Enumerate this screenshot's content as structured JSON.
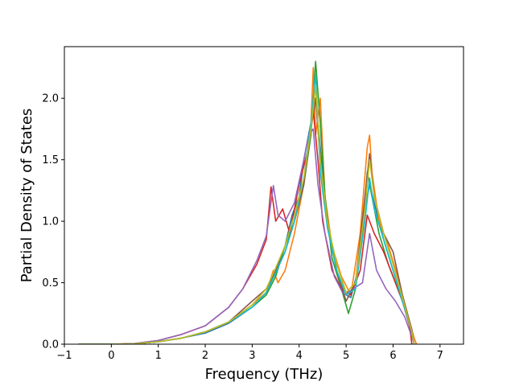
{
  "chart_data": {
    "type": "line",
    "title": "",
    "xlabel": "Frequency (THz)",
    "ylabel": "Partial Density of States",
    "xlim": [
      -1.0,
      7.5
    ],
    "ylim": [
      0.0,
      2.42
    ],
    "xticks": [
      -1,
      0,
      1,
      2,
      3,
      4,
      5,
      6,
      7
    ],
    "xtick_labels": [
      "−1",
      "0",
      "1",
      "2",
      "3",
      "4",
      "5",
      "6",
      "7"
    ],
    "yticks": [
      0.0,
      0.5,
      1.0,
      1.5,
      2.0
    ],
    "ytick_labels": [
      "0.0",
      "0.5",
      "1.0",
      "1.5",
      "2.0"
    ],
    "grid": false,
    "legend": "none",
    "series": [
      {
        "color": "#1f77b4",
        "points": [
          [
            -0.7,
            0
          ],
          [
            0,
            0
          ],
          [
            0.5,
            0.003
          ],
          [
            1.0,
            0.02
          ],
          [
            1.5,
            0.05
          ],
          [
            2.0,
            0.09
          ],
          [
            2.5,
            0.17
          ],
          [
            3.0,
            0.3
          ],
          [
            3.3,
            0.42
          ],
          [
            3.5,
            0.6
          ],
          [
            3.7,
            0.8
          ],
          [
            3.85,
            1.05
          ],
          [
            4.0,
            1.2
          ],
          [
            4.1,
            1.5
          ],
          [
            4.2,
            1.7
          ],
          [
            4.3,
            1.9
          ],
          [
            4.35,
            2.0
          ],
          [
            4.45,
            1.6
          ],
          [
            4.6,
            1.0
          ],
          [
            4.8,
            0.6
          ],
          [
            5.0,
            0.4
          ],
          [
            5.1,
            0.38
          ],
          [
            5.25,
            0.6
          ],
          [
            5.4,
            1.1
          ],
          [
            5.5,
            1.3
          ],
          [
            5.6,
            1.15
          ],
          [
            5.8,
            0.85
          ],
          [
            6.0,
            0.6
          ],
          [
            6.2,
            0.35
          ],
          [
            6.4,
            0.1
          ],
          [
            6.45,
            0
          ]
        ]
      },
      {
        "color": "#ff7f0e",
        "points": [
          [
            -0.7,
            0
          ],
          [
            0,
            0
          ],
          [
            0.5,
            0.003
          ],
          [
            1.0,
            0.02
          ],
          [
            1.5,
            0.05
          ],
          [
            2.0,
            0.1
          ],
          [
            2.5,
            0.18
          ],
          [
            3.0,
            0.32
          ],
          [
            3.3,
            0.42
          ],
          [
            3.45,
            0.6
          ],
          [
            3.55,
            0.5
          ],
          [
            3.7,
            0.6
          ],
          [
            3.9,
            0.9
          ],
          [
            4.1,
            1.3
          ],
          [
            4.25,
            1.8
          ],
          [
            4.3,
            2.25
          ],
          [
            4.35,
            1.7
          ],
          [
            4.45,
            2.0
          ],
          [
            4.55,
            1.2
          ],
          [
            4.7,
            0.8
          ],
          [
            4.9,
            0.55
          ],
          [
            5.1,
            0.4
          ],
          [
            5.3,
            0.9
          ],
          [
            5.45,
            1.6
          ],
          [
            5.5,
            1.7
          ],
          [
            5.55,
            1.4
          ],
          [
            5.7,
            1.0
          ],
          [
            5.9,
            0.8
          ],
          [
            6.1,
            0.55
          ],
          [
            6.3,
            0.25
          ],
          [
            6.45,
            0.05
          ],
          [
            6.5,
            0
          ]
        ]
      },
      {
        "color": "#2ca02c",
        "points": [
          [
            -0.7,
            0
          ],
          [
            0,
            0
          ],
          [
            0.5,
            0.003
          ],
          [
            1.0,
            0.02
          ],
          [
            1.5,
            0.05
          ],
          [
            2.0,
            0.1
          ],
          [
            2.5,
            0.18
          ],
          [
            3.0,
            0.3
          ],
          [
            3.3,
            0.4
          ],
          [
            3.5,
            0.55
          ],
          [
            3.7,
            0.8
          ],
          [
            3.9,
            1.0
          ],
          [
            4.1,
            1.3
          ],
          [
            4.25,
            1.7
          ],
          [
            4.35,
            2.3
          ],
          [
            4.45,
            1.8
          ],
          [
            4.55,
            1.2
          ],
          [
            4.7,
            0.7
          ],
          [
            4.9,
            0.45
          ],
          [
            5.05,
            0.25
          ],
          [
            5.2,
            0.45
          ],
          [
            5.35,
            0.9
          ],
          [
            5.45,
            1.4
          ],
          [
            5.55,
            1.2
          ],
          [
            5.7,
            0.9
          ],
          [
            5.9,
            0.65
          ],
          [
            6.1,
            0.45
          ],
          [
            6.3,
            0.25
          ],
          [
            6.4,
            0.08
          ],
          [
            6.45,
            0
          ]
        ]
      },
      {
        "color": "#d62728",
        "points": [
          [
            -0.7,
            0
          ],
          [
            0,
            0
          ],
          [
            0.5,
            0.005
          ],
          [
            1.0,
            0.03
          ],
          [
            1.5,
            0.08
          ],
          [
            2.0,
            0.15
          ],
          [
            2.5,
            0.3
          ],
          [
            2.8,
            0.45
          ],
          [
            3.1,
            0.65
          ],
          [
            3.3,
            0.85
          ],
          [
            3.4,
            1.28
          ],
          [
            3.5,
            1.0
          ],
          [
            3.65,
            1.1
          ],
          [
            3.8,
            0.9
          ],
          [
            4.0,
            1.3
          ],
          [
            4.2,
            1.6
          ],
          [
            4.3,
            1.9
          ],
          [
            4.4,
            1.5
          ],
          [
            4.5,
            1.0
          ],
          [
            4.7,
            0.6
          ],
          [
            4.9,
            0.45
          ],
          [
            5.1,
            0.4
          ],
          [
            5.3,
            0.6
          ],
          [
            5.45,
            1.05
          ],
          [
            5.6,
            0.9
          ],
          [
            5.8,
            0.75
          ],
          [
            6.0,
            0.55
          ],
          [
            6.2,
            0.35
          ],
          [
            6.35,
            0.15
          ],
          [
            6.4,
            0
          ]
        ]
      },
      {
        "color": "#9467bd",
        "points": [
          [
            -0.7,
            0
          ],
          [
            0,
            0
          ],
          [
            0.5,
            0.005
          ],
          [
            1.0,
            0.03
          ],
          [
            1.5,
            0.08
          ],
          [
            2.0,
            0.15
          ],
          [
            2.5,
            0.3
          ],
          [
            2.8,
            0.45
          ],
          [
            3.1,
            0.68
          ],
          [
            3.3,
            0.88
          ],
          [
            3.45,
            1.29
          ],
          [
            3.55,
            1.05
          ],
          [
            3.7,
            1.0
          ],
          [
            3.9,
            1.15
          ],
          [
            4.1,
            1.5
          ],
          [
            4.2,
            1.7
          ],
          [
            4.3,
            1.75
          ],
          [
            4.4,
            1.3
          ],
          [
            4.55,
            0.9
          ],
          [
            4.75,
            0.55
          ],
          [
            4.95,
            0.4
          ],
          [
            5.15,
            0.45
          ],
          [
            5.35,
            0.5
          ],
          [
            5.5,
            0.9
          ],
          [
            5.65,
            0.6
          ],
          [
            5.85,
            0.45
          ],
          [
            6.05,
            0.35
          ],
          [
            6.25,
            0.22
          ],
          [
            6.4,
            0.06
          ],
          [
            6.45,
            0
          ]
        ]
      },
      {
        "color": "#8c564b",
        "points": [
          [
            -0.7,
            0
          ],
          [
            0,
            0
          ],
          [
            0.5,
            0.003
          ],
          [
            1.0,
            0.02
          ],
          [
            1.5,
            0.05
          ],
          [
            2.0,
            0.1
          ],
          [
            2.5,
            0.18
          ],
          [
            3.0,
            0.35
          ],
          [
            3.3,
            0.45
          ],
          [
            3.5,
            0.6
          ],
          [
            3.7,
            0.75
          ],
          [
            3.9,
            1.0
          ],
          [
            4.1,
            1.3
          ],
          [
            4.25,
            1.75
          ],
          [
            4.35,
            2.0
          ],
          [
            4.45,
            1.5
          ],
          [
            4.6,
            1.0
          ],
          [
            4.8,
            0.6
          ],
          [
            5.0,
            0.35
          ],
          [
            5.2,
            0.5
          ],
          [
            5.4,
            1.2
          ],
          [
            5.5,
            1.55
          ],
          [
            5.6,
            1.2
          ],
          [
            5.8,
            0.9
          ],
          [
            6.0,
            0.75
          ],
          [
            6.2,
            0.4
          ],
          [
            6.4,
            0.12
          ],
          [
            6.45,
            0
          ]
        ]
      },
      {
        "color": "#17becf",
        "points": [
          [
            -0.7,
            0
          ],
          [
            0,
            0
          ],
          [
            0.5,
            0.003
          ],
          [
            1.0,
            0.02
          ],
          [
            1.5,
            0.05
          ],
          [
            2.0,
            0.1
          ],
          [
            2.5,
            0.18
          ],
          [
            3.0,
            0.3
          ],
          [
            3.3,
            0.42
          ],
          [
            3.5,
            0.58
          ],
          [
            3.7,
            0.75
          ],
          [
            3.9,
            1.0
          ],
          [
            4.1,
            1.35
          ],
          [
            4.25,
            1.8
          ],
          [
            4.35,
            2.2
          ],
          [
            4.45,
            1.4
          ],
          [
            4.6,
            0.95
          ],
          [
            4.8,
            0.6
          ],
          [
            5.0,
            0.4
          ],
          [
            5.2,
            0.45
          ],
          [
            5.4,
            1.0
          ],
          [
            5.5,
            1.35
          ],
          [
            5.6,
            1.1
          ],
          [
            5.8,
            0.85
          ],
          [
            6.0,
            0.6
          ],
          [
            6.2,
            0.35
          ],
          [
            6.4,
            0.1
          ],
          [
            6.45,
            0
          ]
        ]
      },
      {
        "color": "#bcbd22",
        "points": [
          [
            -0.7,
            0
          ],
          [
            0,
            0
          ],
          [
            0.5,
            0.003
          ],
          [
            1.0,
            0.02
          ],
          [
            1.5,
            0.05
          ],
          [
            2.0,
            0.1
          ],
          [
            2.5,
            0.18
          ],
          [
            3.0,
            0.32
          ],
          [
            3.3,
            0.45
          ],
          [
            3.5,
            0.62
          ],
          [
            3.7,
            0.8
          ],
          [
            3.9,
            1.05
          ],
          [
            4.1,
            1.35
          ],
          [
            4.25,
            1.75
          ],
          [
            4.35,
            2.1
          ],
          [
            4.45,
            1.5
          ],
          [
            4.6,
            1.0
          ],
          [
            4.8,
            0.65
          ],
          [
            5.0,
            0.42
          ],
          [
            5.2,
            0.5
          ],
          [
            5.4,
            1.1
          ],
          [
            5.5,
            1.5
          ],
          [
            5.6,
            1.2
          ],
          [
            5.8,
            0.9
          ],
          [
            6.0,
            0.65
          ],
          [
            6.2,
            0.38
          ],
          [
            6.4,
            0.1
          ],
          [
            6.45,
            0
          ]
        ]
      }
    ]
  }
}
